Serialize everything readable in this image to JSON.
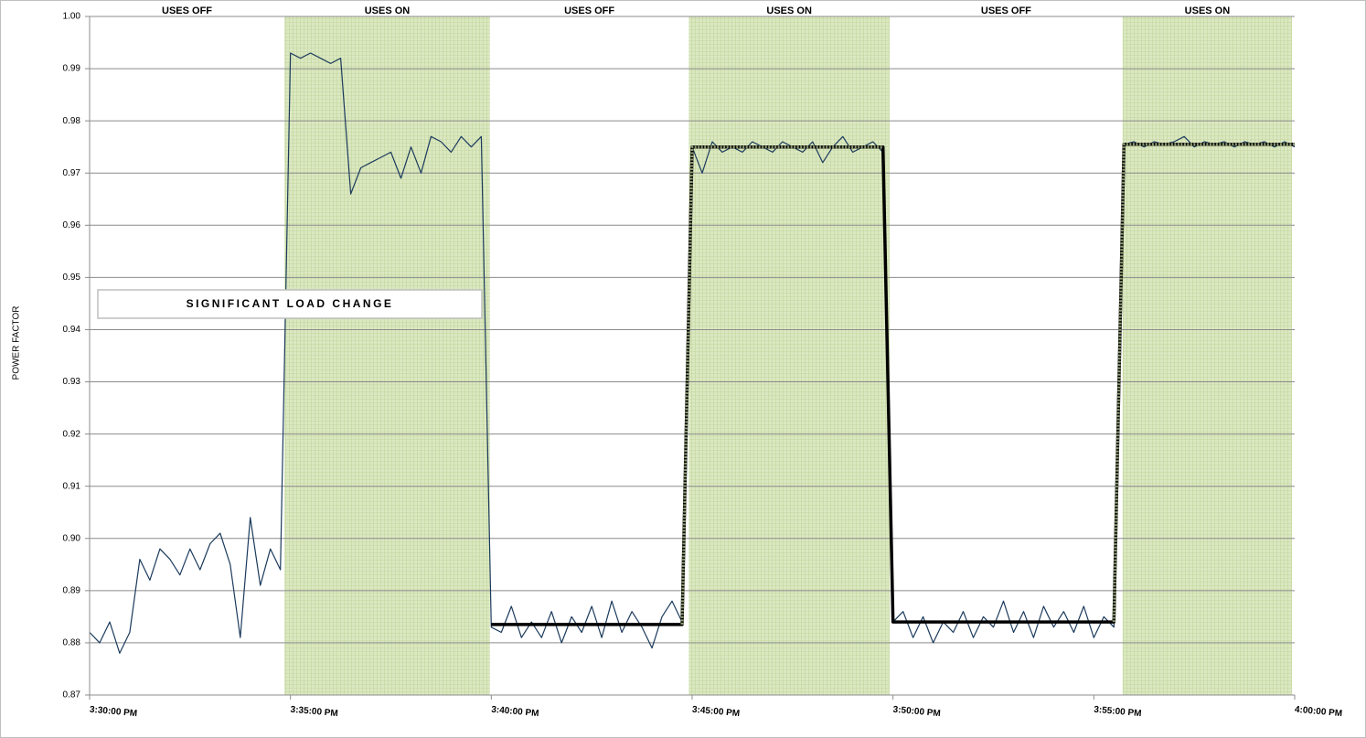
{
  "chart_data": {
    "type": "line",
    "y_label": "POWER FACTOR",
    "annotation": "SIGNIFICANT LOAD CHANGE",
    "xlim": [
      "3:30:00 PM",
      "4:00:00 PM"
    ],
    "xticks": [
      "3:30:00 PM",
      "3:35:00 PM",
      "3:40:00 PM",
      "3:45:00 PM",
      "3:50:00 PM",
      "3:55:00 PM",
      "4:00:00 PM"
    ],
    "ylim": [
      0.87,
      1
    ],
    "yticks": [
      0.87,
      0.88,
      0.89,
      {
        "value": 0.9,
        "label": "0.90"
      },
      0.91,
      0.92,
      0.93,
      0.94,
      0.95,
      0.96,
      0.97,
      0.98,
      0.99,
      {
        "value": 1,
        "label": "1.00"
      }
    ],
    "grid": true,
    "phases": [
      {
        "label": "USES OFF",
        "start": "3:30:00 PM",
        "end": "3:34:51 PM",
        "shaded": false
      },
      {
        "label": "USES ON",
        "start": "3:34:51 PM",
        "end": "3:39:58 PM",
        "shaded": true
      },
      {
        "label": "USES OFF",
        "start": "3:39:58 PM",
        "end": "3:44:55 PM",
        "shaded": false
      },
      {
        "label": "USES ON",
        "start": "3:44:55 PM",
        "end": "3:49:55 PM",
        "shaded": true
      },
      {
        "label": "USES OFF",
        "start": "3:49:55 PM",
        "end": "3:55:43 PM",
        "shaded": false
      },
      {
        "label": "USES ON",
        "start": "3:55:43 PM",
        "end": "3:59:56 PM",
        "shaded": true
      }
    ],
    "x": [
      "3:30:00 PM",
      "3:30:15 PM",
      "3:30:30 PM",
      "3:30:45 PM",
      "3:31:00 PM",
      "3:31:15 PM",
      "3:31:30 PM",
      "3:31:45 PM",
      "3:32:00 PM",
      "3:32:15 PM",
      "3:32:30 PM",
      "3:32:45 PM",
      "3:33:00 PM",
      "3:33:15 PM",
      "3:33:30 PM",
      "3:33:45 PM",
      "3:34:00 PM",
      "3:34:15 PM",
      "3:34:30 PM",
      "3:34:45 PM",
      "3:35:00 PM",
      "3:35:15 PM",
      "3:35:30 PM",
      "3:35:45 PM",
      "3:36:00 PM",
      "3:36:15 PM",
      "3:36:30 PM",
      "3:36:45 PM",
      "3:37:00 PM",
      "3:37:15 PM",
      "3:37:30 PM",
      "3:37:45 PM",
      "3:38:00 PM",
      "3:38:15 PM",
      "3:38:30 PM",
      "3:38:45 PM",
      "3:39:00 PM",
      "3:39:15 PM",
      "3:39:30 PM",
      "3:39:45 PM",
      "3:40:00 PM",
      "3:40:15 PM",
      "3:40:30 PM",
      "3:40:45 PM",
      "3:41:00 PM",
      "3:41:15 PM",
      "3:41:30 PM",
      "3:41:45 PM",
      "3:42:00 PM",
      "3:42:15 PM",
      "3:42:30 PM",
      "3:42:45 PM",
      "3:43:00 PM",
      "3:43:15 PM",
      "3:43:30 PM",
      "3:43:45 PM",
      "3:44:00 PM",
      "3:44:15 PM",
      "3:44:30 PM",
      "3:44:45 PM",
      "3:45:00 PM",
      "3:45:15 PM",
      "3:45:30 PM",
      "3:45:45 PM",
      "3:46:00 PM",
      "3:46:15 PM",
      "3:46:30 PM",
      "3:46:45 PM",
      "3:47:00 PM",
      "3:47:15 PM",
      "3:47:30 PM",
      "3:47:45 PM",
      "3:48:00 PM",
      "3:48:15 PM",
      "3:48:30 PM",
      "3:48:45 PM",
      "3:49:00 PM",
      "3:49:15 PM",
      "3:49:30 PM",
      "3:49:45 PM",
      "3:50:00 PM",
      "3:50:15 PM",
      "3:50:30 PM",
      "3:50:45 PM",
      "3:51:00 PM",
      "3:51:15 PM",
      "3:51:30 PM",
      "3:51:45 PM",
      "3:52:00 PM",
      "3:52:15 PM",
      "3:52:30 PM",
      "3:52:45 PM",
      "3:53:00 PM",
      "3:53:15 PM",
      "3:53:30 PM",
      "3:53:45 PM",
      "3:54:00 PM",
      "3:54:15 PM",
      "3:54:30 PM",
      "3:54:45 PM",
      "3:55:00 PM",
      "3:55:15 PM",
      "3:55:30 PM",
      "3:55:45 PM",
      "3:56:00 PM",
      "3:56:15 PM",
      "3:56:30 PM",
      "3:56:45 PM",
      "3:57:00 PM",
      "3:57:15 PM",
      "3:57:30 PM",
      "3:57:45 PM",
      "3:58:00 PM",
      "3:58:15 PM",
      "3:58:30 PM",
      "3:58:45 PM",
      "3:59:00 PM",
      "3:59:15 PM",
      "3:59:30 PM",
      "3:59:45 PM",
      "4:00:00 PM"
    ],
    "series": [
      {
        "color": "#1b3a5c",
        "width": 1.2,
        "values": [
          0.882,
          0.88,
          0.884,
          0.878,
          0.882,
          0.896,
          0.892,
          0.898,
          0.896,
          0.893,
          0.898,
          0.894,
          0.899,
          0.901,
          0.895,
          0.881,
          0.904,
          0.891,
          0.898,
          0.894,
          0.993,
          0.992,
          0.993,
          0.992,
          0.991,
          0.992,
          0.966,
          0.971,
          0.972,
          0.973,
          0.974,
          0.969,
          0.975,
          0.97,
          0.977,
          0.976,
          0.974,
          0.977,
          0.975,
          0.977,
          0.883,
          0.882,
          0.887,
          0.881,
          0.884,
          0.881,
          0.886,
          0.88,
          0.885,
          0.882,
          0.887,
          0.881,
          0.888,
          0.882,
          0.886,
          0.883,
          0.879,
          0.885,
          0.888,
          0.884,
          0.975,
          0.97,
          0.976,
          0.974,
          0.975,
          0.974,
          0.976,
          0.975,
          0.974,
          0.976,
          0.975,
          0.974,
          0.976,
          0.972,
          0.975,
          0.977,
          0.974,
          0.975,
          0.976,
          0.974,
          0.884,
          0.886,
          0.881,
          0.885,
          0.88,
          0.884,
          0.882,
          0.886,
          0.881,
          0.885,
          0.883,
          0.888,
          0.882,
          0.886,
          0.881,
          0.887,
          0.883,
          0.886,
          0.882,
          0.887,
          0.881,
          0.885,
          0.883,
          0.9755,
          0.976,
          0.975,
          0.976,
          0.9755,
          0.976,
          0.977,
          0.975,
          0.976,
          0.9755,
          0.976,
          0.975,
          0.976,
          0.9755,
          0.976,
          0.975,
          0.976,
          0.975
        ]
      },
      {
        "color": "#000000",
        "width": 3.5,
        "x": [
          "3:40:00 PM",
          "3:44:45 PM",
          "3:45:00 PM",
          "3:49:45 PM",
          "3:50:00 PM",
          "3:55:30 PM",
          "3:55:45 PM",
          "4:00:00 PM"
        ],
        "values": [
          0.8835,
          0.8835,
          0.975,
          0.975,
          0.884,
          0.884,
          0.9755,
          0.9755
        ]
      },
      {
        "color": "#8f9c73",
        "width": 3,
        "dash": "2,1.5",
        "x": [
          "3:44:45 PM",
          "3:45:00 PM",
          "3:49:45 PM",
          null,
          "3:55:30 PM",
          "3:55:45 PM",
          "4:00:00 PM"
        ],
        "values": [
          0.8835,
          0.975,
          0.975,
          null,
          0.884,
          0.9755,
          0.9755
        ]
      }
    ]
  }
}
